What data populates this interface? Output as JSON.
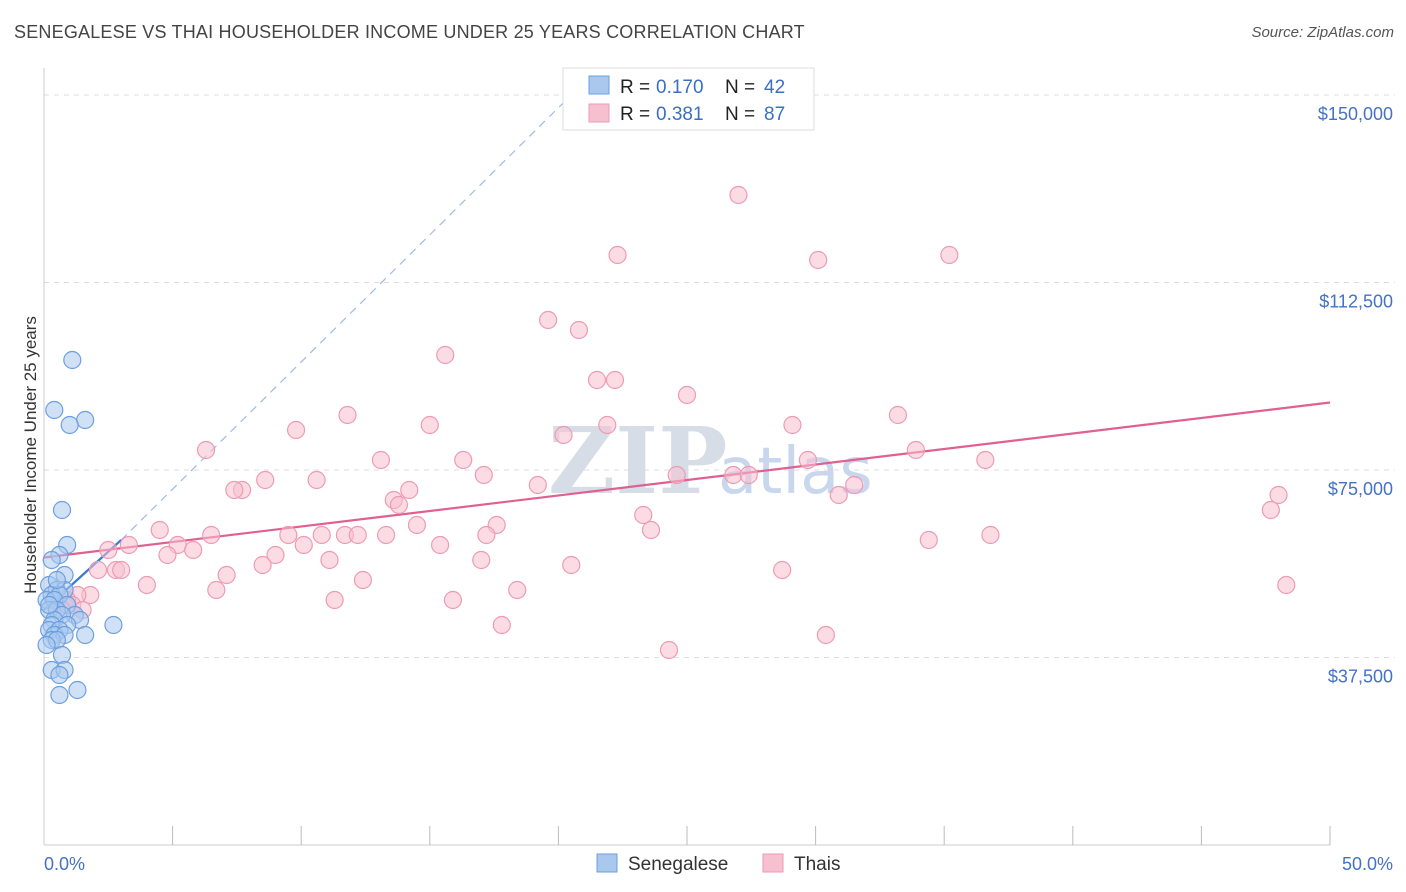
{
  "title": "SENEGALESE VS THAI HOUSEHOLDER INCOME UNDER 25 YEARS CORRELATION CHART",
  "source": "Source: ZipAtlas.com",
  "watermark": {
    "part1": "ZIP",
    "part2": "atlas"
  },
  "colors": {
    "blue_fill": "#aac8ee",
    "blue_stroke": "#6b9fe0",
    "blue_line": "#3a7bd5",
    "pink_fill": "#f7c0d0",
    "pink_stroke": "#ee9ab4",
    "pink_line": "#e06090",
    "grid": "#dddddd",
    "tick_text": "#4472c4"
  },
  "legend": {
    "r_label": "R =",
    "n_label": "N =",
    "senegalese": {
      "r": "0.170",
      "n": "42"
    },
    "thais": {
      "r": "0.381",
      "n": "87"
    }
  },
  "bottom_legend": {
    "senegalese": "Senegalese",
    "thais": "Thais"
  },
  "chart_data": {
    "type": "scatter",
    "title": "SENEGALESE VS THAI HOUSEHOLDER INCOME UNDER 25 YEARS CORRELATION CHART",
    "xlabel": "",
    "ylabel": "Householder Income Under 25 years",
    "xlim": [
      0,
      50
    ],
    "ylim": [
      0,
      155000
    ],
    "x_tick_labels": [
      "0.0%",
      "50.0%"
    ],
    "y_ticks": [
      37500,
      75000,
      112500,
      150000
    ],
    "y_tick_labels": [
      "$37,500",
      "$75,000",
      "$112,500",
      "$150,000"
    ],
    "grid": "horizontal dashed",
    "legend_position": "top-center",
    "series": [
      {
        "name": "Senegalese",
        "trend": {
          "x0": 0.0,
          "y0": 47000,
          "x1": 3.0,
          "y1": 61000,
          "dashed_extension_to": [
            20.5,
            150000
          ]
        },
        "points": [
          [
            1.1,
            97000
          ],
          [
            0.4,
            87000
          ],
          [
            1.6,
            85000
          ],
          [
            1.0,
            84000
          ],
          [
            0.7,
            67000
          ],
          [
            0.9,
            60000
          ],
          [
            0.6,
            58000
          ],
          [
            0.3,
            57000
          ],
          [
            0.8,
            54000
          ],
          [
            0.2,
            52000
          ],
          [
            0.5,
            51000
          ],
          [
            0.8,
            51000
          ],
          [
            0.3,
            50000
          ],
          [
            0.6,
            50000
          ],
          [
            0.1,
            49000
          ],
          [
            0.4,
            49000
          ],
          [
            0.9,
            48000
          ],
          [
            0.2,
            47000
          ],
          [
            0.5,
            47000
          ],
          [
            1.2,
            46000
          ],
          [
            0.7,
            46000
          ],
          [
            0.4,
            45000
          ],
          [
            1.4,
            45000
          ],
          [
            0.3,
            44000
          ],
          [
            0.9,
            44000
          ],
          [
            2.7,
            44000
          ],
          [
            0.2,
            43000
          ],
          [
            0.6,
            43000
          ],
          [
            0.4,
            42000
          ],
          [
            1.6,
            42000
          ],
          [
            0.8,
            42000
          ],
          [
            0.3,
            41000
          ],
          [
            0.5,
            41000
          ],
          [
            0.1,
            40000
          ],
          [
            0.7,
            38000
          ],
          [
            0.3,
            35000
          ],
          [
            0.8,
            35000
          ],
          [
            0.6,
            34000
          ],
          [
            1.3,
            31000
          ],
          [
            0.6,
            30000
          ],
          [
            0.2,
            48000
          ],
          [
            0.5,
            53000
          ]
        ]
      },
      {
        "name": "Thais",
        "trend": {
          "x0": 0.0,
          "y0": 57500,
          "x1": 50.0,
          "y1": 88500
        },
        "points": [
          [
            27.0,
            130000
          ],
          [
            22.3,
            118000
          ],
          [
            30.1,
            117000
          ],
          [
            35.2,
            118000
          ],
          [
            19.6,
            105000
          ],
          [
            20.8,
            103000
          ],
          [
            15.6,
            98000
          ],
          [
            21.5,
            93000
          ],
          [
            22.2,
            93000
          ],
          [
            25.0,
            90000
          ],
          [
            11.8,
            86000
          ],
          [
            33.2,
            86000
          ],
          [
            9.8,
            83000
          ],
          [
            15.0,
            84000
          ],
          [
            21.9,
            84000
          ],
          [
            29.1,
            84000
          ],
          [
            20.2,
            82000
          ],
          [
            6.3,
            79000
          ],
          [
            33.9,
            79000
          ],
          [
            13.1,
            77000
          ],
          [
            16.3,
            77000
          ],
          [
            29.7,
            77000
          ],
          [
            36.6,
            77000
          ],
          [
            17.1,
            74000
          ],
          [
            24.6,
            74000
          ],
          [
            26.8,
            74000
          ],
          [
            27.4,
            74000
          ],
          [
            8.6,
            73000
          ],
          [
            10.6,
            73000
          ],
          [
            19.2,
            72000
          ],
          [
            31.5,
            72000
          ],
          [
            7.7,
            71000
          ],
          [
            7.4,
            71000
          ],
          [
            14.2,
            71000
          ],
          [
            30.9,
            70000
          ],
          [
            48.0,
            70000
          ],
          [
            13.6,
            69000
          ],
          [
            13.8,
            68000
          ],
          [
            47.7,
            67000
          ],
          [
            23.3,
            66000
          ],
          [
            14.5,
            64000
          ],
          [
            17.6,
            64000
          ],
          [
            4.5,
            63000
          ],
          [
            6.5,
            62000
          ],
          [
            10.8,
            62000
          ],
          [
            23.6,
            63000
          ],
          [
            9.5,
            62000
          ],
          [
            11.7,
            62000
          ],
          [
            12.2,
            62000
          ],
          [
            13.3,
            62000
          ],
          [
            17.2,
            62000
          ],
          [
            36.8,
            62000
          ],
          [
            34.4,
            61000
          ],
          [
            2.5,
            59000
          ],
          [
            3.3,
            60000
          ],
          [
            5.2,
            60000
          ],
          [
            5.8,
            59000
          ],
          [
            10.1,
            60000
          ],
          [
            15.4,
            60000
          ],
          [
            4.8,
            58000
          ],
          [
            9.0,
            58000
          ],
          [
            11.1,
            57000
          ],
          [
            17.0,
            57000
          ],
          [
            20.5,
            56000
          ],
          [
            2.1,
            55000
          ],
          [
            2.8,
            55000
          ],
          [
            3.0,
            55000
          ],
          [
            8.5,
            56000
          ],
          [
            28.7,
            55000
          ],
          [
            7.1,
            54000
          ],
          [
            12.4,
            53000
          ],
          [
            4.0,
            52000
          ],
          [
            48.3,
            52000
          ],
          [
            6.7,
            51000
          ],
          [
            18.4,
            51000
          ],
          [
            1.8,
            50000
          ],
          [
            1.3,
            50000
          ],
          [
            0.9,
            49000
          ],
          [
            11.3,
            49000
          ],
          [
            15.9,
            49000
          ],
          [
            1.1,
            48000
          ],
          [
            0.5,
            47000
          ],
          [
            0.7,
            47000
          ],
          [
            17.8,
            44000
          ],
          [
            30.4,
            42000
          ],
          [
            24.3,
            39000
          ],
          [
            1.5,
            47000
          ]
        ]
      }
    ]
  }
}
